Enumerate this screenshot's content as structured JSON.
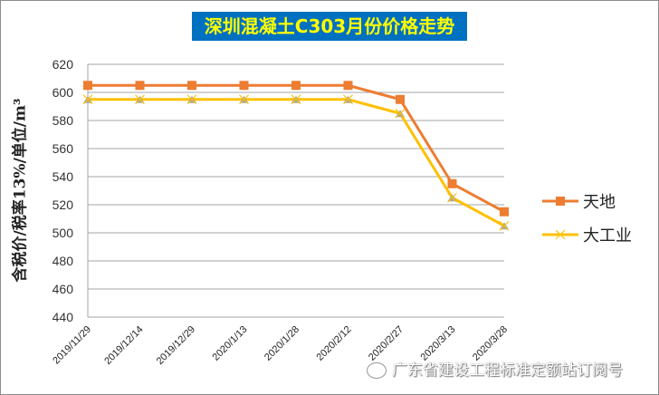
{
  "chart_data": {
    "type": "line",
    "title": "深圳混凝土C303月份价格走势",
    "xlabel": "",
    "ylabel": "含税价/税率13%/单位/m³",
    "ylim": [
      440,
      620
    ],
    "yticks": [
      440,
      460,
      480,
      500,
      520,
      540,
      560,
      580,
      600,
      620
    ],
    "grid": true,
    "legend_position": "right",
    "categories": [
      "2019/11/29",
      "2019/12/14",
      "2019/12/29",
      "2020/1/13",
      "2020/1/28",
      "2020/2/12",
      "2020/2/27",
      "2020/3/13",
      "2020/3/28"
    ],
    "series": [
      {
        "name": "天地",
        "color": "#ed7d31",
        "marker": "square",
        "values": [
          605,
          605,
          605,
          605,
          605,
          605,
          595,
          535,
          515
        ]
      },
      {
        "name": "大工业",
        "color": "#ffc000",
        "marker": "x",
        "values": [
          595,
          595,
          595,
          595,
          595,
          595,
          585,
          525,
          505
        ]
      }
    ]
  },
  "title": "深圳混凝土C303月份价格走势",
  "ylabel": "含税价/税率13%/单位/m³",
  "legend": {
    "items": [
      {
        "label": "天地"
      },
      {
        "label": "大工业"
      }
    ]
  },
  "watermark": "广东省建设工程标准定额站订阅号",
  "colors": {
    "title_bg": "#0070c0",
    "title_text": "#ffff00",
    "grid": "#a6a6a6"
  }
}
